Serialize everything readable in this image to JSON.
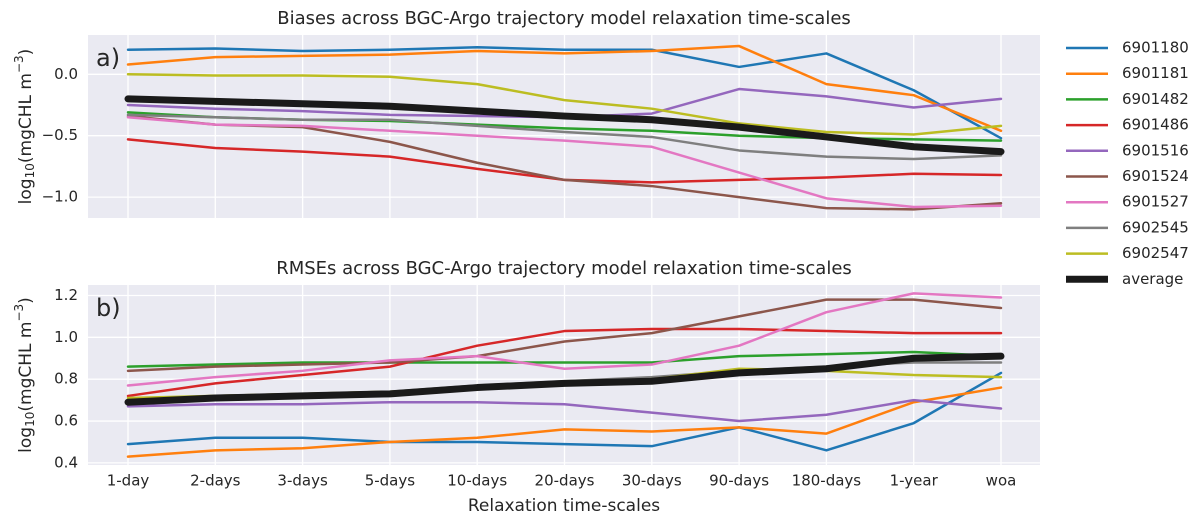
{
  "chart_data": [
    {
      "type": "line",
      "title": "Biases across BGC-Argo trajectory model relaxation time-scales",
      "panel_label": "a)",
      "y_label": {
        "base": "log",
        "sub": "10",
        "mid": "(mgCHL m",
        "sup": "−3",
        "end": ")"
      },
      "ylim": [
        -1.17,
        0.32
      ],
      "yticks": [
        {
          "value": -1.0,
          "label": "−1.0"
        },
        {
          "value": -0.5,
          "label": "−0.5"
        },
        {
          "value": 0.0,
          "label": "0.0"
        }
      ],
      "grid": true,
      "legend": "outside right",
      "series": [
        {
          "name": "6901180",
          "color": "#1f77b4",
          "values": [
            0.2,
            0.21,
            0.19,
            0.2,
            0.22,
            0.2,
            0.2,
            0.06,
            0.17,
            -0.13,
            -0.52
          ]
        },
        {
          "name": "6901181",
          "color": "#ff7f0e",
          "values": [
            0.08,
            0.14,
            0.15,
            0.16,
            0.19,
            0.17,
            0.19,
            0.23,
            -0.08,
            -0.17,
            -0.46
          ]
        },
        {
          "name": "6901482",
          "color": "#2ca02c",
          "values": [
            -0.31,
            -0.35,
            -0.37,
            -0.38,
            -0.41,
            -0.44,
            -0.46,
            -0.5,
            -0.52,
            -0.53,
            -0.54
          ]
        },
        {
          "name": "6901486",
          "color": "#d62728",
          "values": [
            -0.53,
            -0.6,
            -0.63,
            -0.67,
            -0.77,
            -0.86,
            -0.88,
            -0.86,
            -0.84,
            -0.81,
            -0.82
          ]
        },
        {
          "name": "6901516",
          "color": "#9467bd",
          "values": [
            -0.25,
            -0.28,
            -0.3,
            -0.33,
            -0.34,
            -0.35,
            -0.32,
            -0.12,
            -0.18,
            -0.27,
            -0.2
          ]
        },
        {
          "name": "6901524",
          "color": "#8c564b",
          "values": [
            -0.34,
            -0.41,
            -0.43,
            -0.55,
            -0.72,
            -0.86,
            -0.91,
            -1.0,
            -1.09,
            -1.1,
            -1.05
          ]
        },
        {
          "name": "6901527",
          "color": "#e377c2",
          "values": [
            -0.35,
            -0.41,
            -0.42,
            -0.46,
            -0.5,
            -0.54,
            -0.59,
            -0.8,
            -1.01,
            -1.08,
            -1.07
          ]
        },
        {
          "name": "6902545",
          "color": "#7f7f7f",
          "values": [
            -0.33,
            -0.35,
            -0.37,
            -0.37,
            -0.42,
            -0.47,
            -0.51,
            -0.62,
            -0.67,
            -0.69,
            -0.66
          ]
        },
        {
          "name": "6902547",
          "color": "#bcbd22",
          "values": [
            0.0,
            -0.01,
            -0.01,
            -0.02,
            -0.08,
            -0.21,
            -0.28,
            -0.4,
            -0.47,
            -0.49,
            -0.42
          ]
        },
        {
          "name": "average",
          "color": "#1a1a1a",
          "values": [
            -0.2,
            -0.22,
            -0.24,
            -0.26,
            -0.3,
            -0.34,
            -0.37,
            -0.43,
            -0.51,
            -0.59,
            -0.63
          ]
        }
      ]
    },
    {
      "type": "line",
      "title": "RMSEs across BGC-Argo trajectory model relaxation time-scales",
      "panel_label": "b)",
      "x_label": "Relaxation time-scales",
      "y_label": {
        "base": "log",
        "sub": "10",
        "mid": "(mgCHL m",
        "sup": "−3",
        "end": ")"
      },
      "categories": [
        "1-day",
        "2-days",
        "3-days",
        "5-days",
        "10-days",
        "20-days",
        "30-days",
        "90-days",
        "180-days",
        "1-year",
        "woa"
      ],
      "ylim": [
        0.39,
        1.25
      ],
      "yticks": [
        0.4,
        0.6,
        0.8,
        {
          "value": 1.0,
          "label": "1.0"
        },
        1.2
      ],
      "grid": true,
      "series": [
        {
          "name": "6901180",
          "color": "#1f77b4",
          "values": [
            0.49,
            0.52,
            0.52,
            0.5,
            0.5,
            0.49,
            0.48,
            0.57,
            0.46,
            0.59,
            0.83
          ]
        },
        {
          "name": "6901181",
          "color": "#ff7f0e",
          "values": [
            0.43,
            0.46,
            0.47,
            0.5,
            0.52,
            0.56,
            0.55,
            0.57,
            0.54,
            0.69,
            0.76
          ]
        },
        {
          "name": "6901482",
          "color": "#2ca02c",
          "values": [
            0.86,
            0.87,
            0.88,
            0.88,
            0.88,
            0.88,
            0.88,
            0.91,
            0.92,
            0.93,
            0.91
          ]
        },
        {
          "name": "6901486",
          "color": "#d62728",
          "values": [
            0.72,
            0.78,
            0.82,
            0.86,
            0.96,
            1.03,
            1.04,
            1.04,
            1.03,
            1.02,
            1.02
          ]
        },
        {
          "name": "6901516",
          "color": "#9467bd",
          "values": [
            0.67,
            0.68,
            0.68,
            0.69,
            0.69,
            0.68,
            0.64,
            0.6,
            0.63,
            0.7,
            0.66
          ]
        },
        {
          "name": "6901524",
          "color": "#8c564b",
          "values": [
            0.84,
            0.86,
            0.87,
            0.88,
            0.91,
            0.98,
            1.02,
            1.1,
            1.18,
            1.18,
            1.14
          ]
        },
        {
          "name": "6901527",
          "color": "#e377c2",
          "values": [
            0.77,
            0.81,
            0.84,
            0.89,
            0.91,
            0.85,
            0.87,
            0.96,
            1.12,
            1.21,
            1.19
          ]
        },
        {
          "name": "6902545",
          "color": "#7f7f7f",
          "values": [
            0.7,
            0.72,
            0.73,
            0.74,
            0.77,
            0.79,
            0.81,
            0.84,
            0.86,
            0.88,
            0.88
          ]
        },
        {
          "name": "6902547",
          "color": "#bcbd22",
          "values": [
            0.71,
            0.72,
            0.73,
            0.74,
            0.76,
            0.78,
            0.8,
            0.85,
            0.84,
            0.82,
            0.81
          ]
        },
        {
          "name": "average",
          "color": "#1a1a1a",
          "values": [
            0.69,
            0.71,
            0.72,
            0.73,
            0.76,
            0.78,
            0.79,
            0.83,
            0.85,
            0.9,
            0.91
          ]
        }
      ]
    }
  ]
}
